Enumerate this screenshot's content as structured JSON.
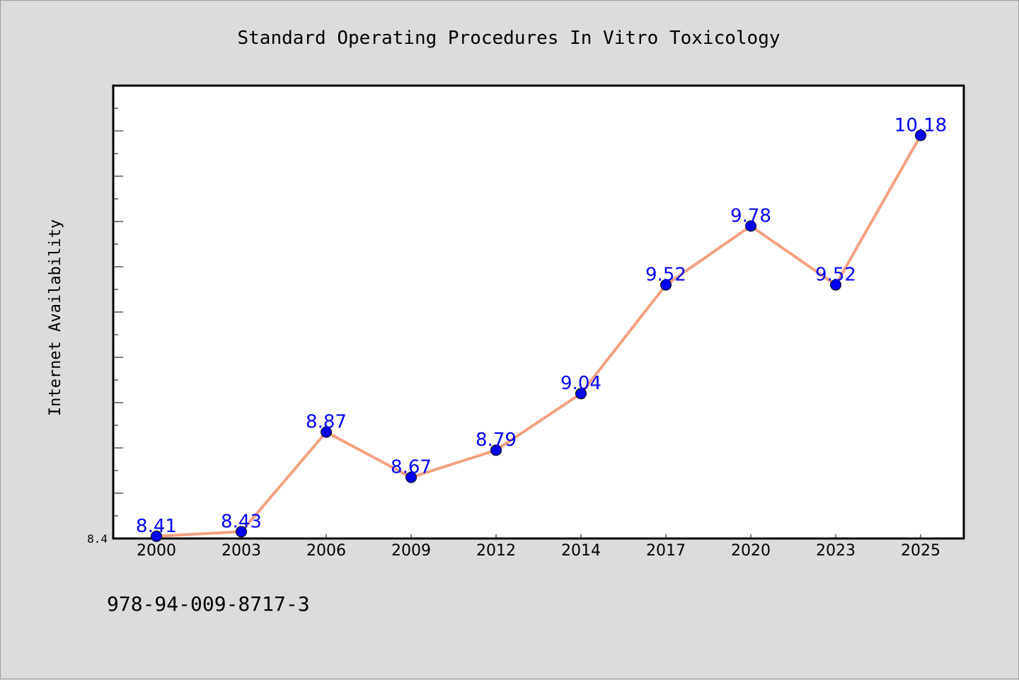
{
  "chart_data": {
    "type": "line",
    "title": "Standard Operating Procedures In Vitro Toxicology",
    "xlabel": "",
    "ylabel": "Internet Availability",
    "categories": [
      "2000",
      "2003",
      "2006",
      "2009",
      "2012",
      "2014",
      "2017",
      "2020",
      "2023",
      "2025"
    ],
    "series": [
      {
        "values": [
          8.41,
          8.43,
          8.87,
          8.67,
          8.79,
          9.04,
          9.52,
          9.78,
          9.52,
          10.18
        ]
      }
    ],
    "data_labels": [
      "8.41",
      "8.43",
      "8.87",
      "8.67",
      "8.79",
      "9.04",
      "9.52",
      "9.78",
      "9.52",
      "10.18"
    ],
    "ylim": [
      8.4,
      10.4
    ],
    "y_tick_labels": [
      "8.4"
    ],
    "grid": false,
    "legend": "none",
    "colors": {
      "line": "#f5a07f",
      "marker": "#0000ee",
      "label": "#0000ff",
      "frame": "#000000",
      "plot_bg": "#ffffff",
      "page_bg": "#dcdcdc"
    }
  },
  "footnote": "978-94-009-8717-3"
}
